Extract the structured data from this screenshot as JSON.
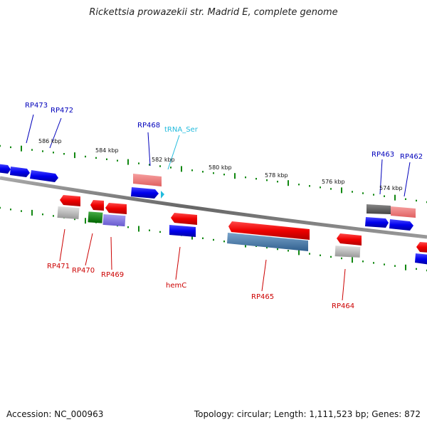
{
  "title": "Rickettsia prowazekii str. Madrid E, complete genome",
  "footer": {
    "accession": "Accession: NC_000963",
    "stats": "Topology: circular; Length: 1,111,523 bp; Genes: 872"
  },
  "colors": {
    "forward_label": "#0000bb",
    "reverse_label": "#cc0000",
    "trna_label": "#22bbdd",
    "tick": "#118811",
    "backbone": "#777777"
  },
  "scale_labels": [
    "586 kbp",
    "584 kbp",
    "582 kbp",
    "580 kbp",
    "578 kbp",
    "576 kbp",
    "574 kbp"
  ],
  "forward_gene_labels": [
    "RP473",
    "RP472",
    "RP468",
    "RP463",
    "RP462"
  ],
  "trna_labels": [
    "tRNA_Ser"
  ],
  "reverse_gene_labels": [
    "RP471",
    "RP470",
    "RP469",
    "hemC",
    "RP465",
    "RP464"
  ]
}
